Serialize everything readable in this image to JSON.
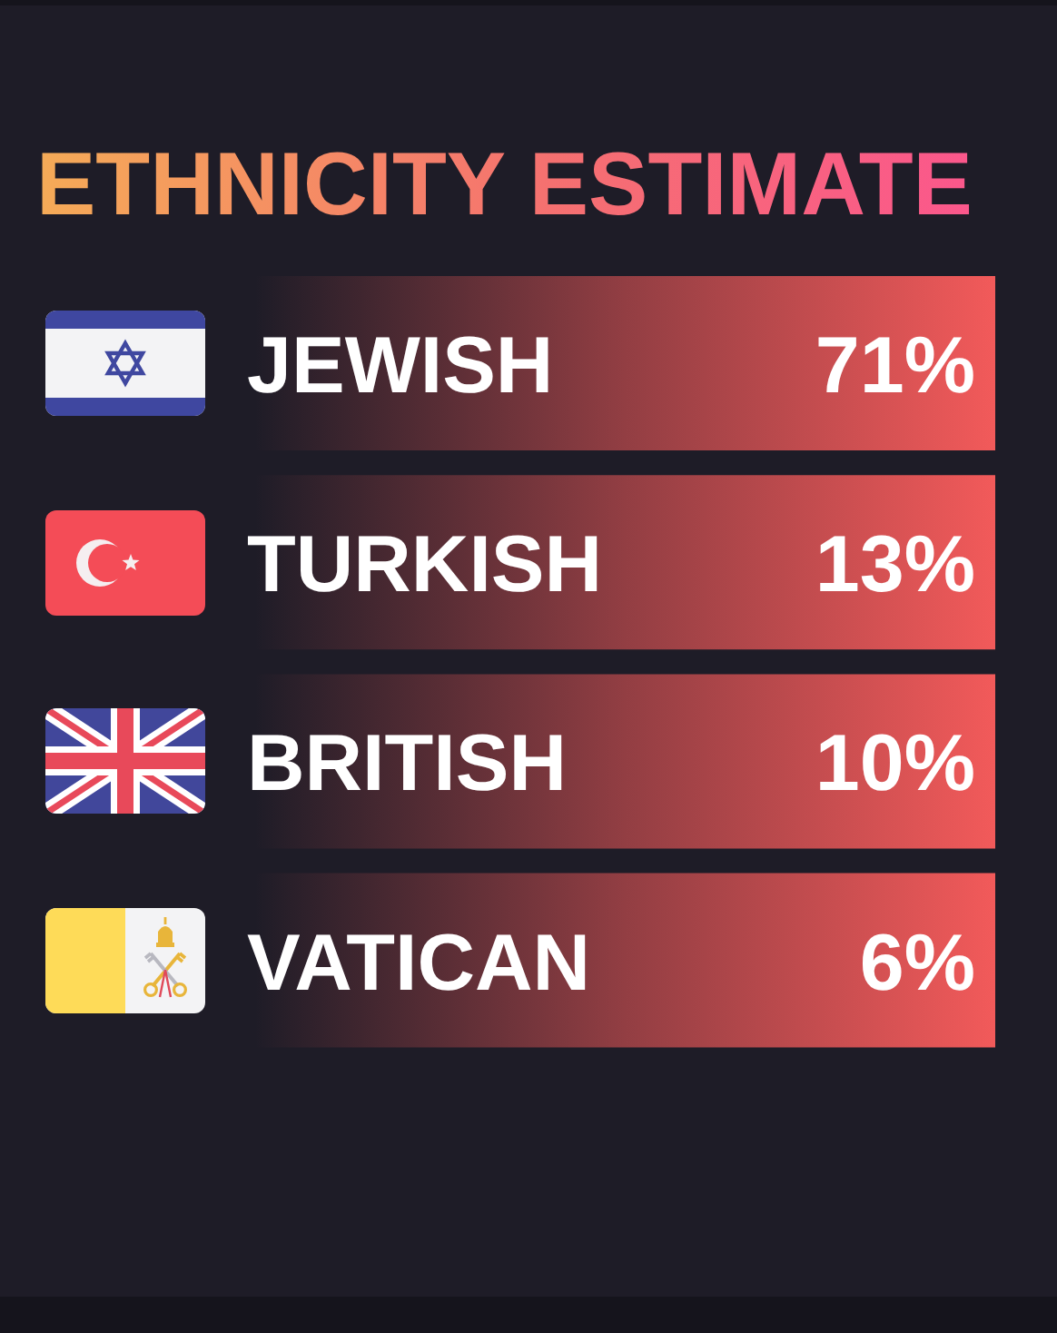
{
  "chart_data": {
    "type": "other",
    "title": "ETHNICITY ESTIMATE",
    "categories": [
      "JEWISH",
      "TURKISH",
      "BRITISH",
      "VATICAN"
    ],
    "values": [
      71,
      13,
      10,
      6
    ],
    "value_labels": [
      "71%",
      "13%",
      "10%",
      "6%"
    ],
    "color": "#f25a5a"
  }
}
